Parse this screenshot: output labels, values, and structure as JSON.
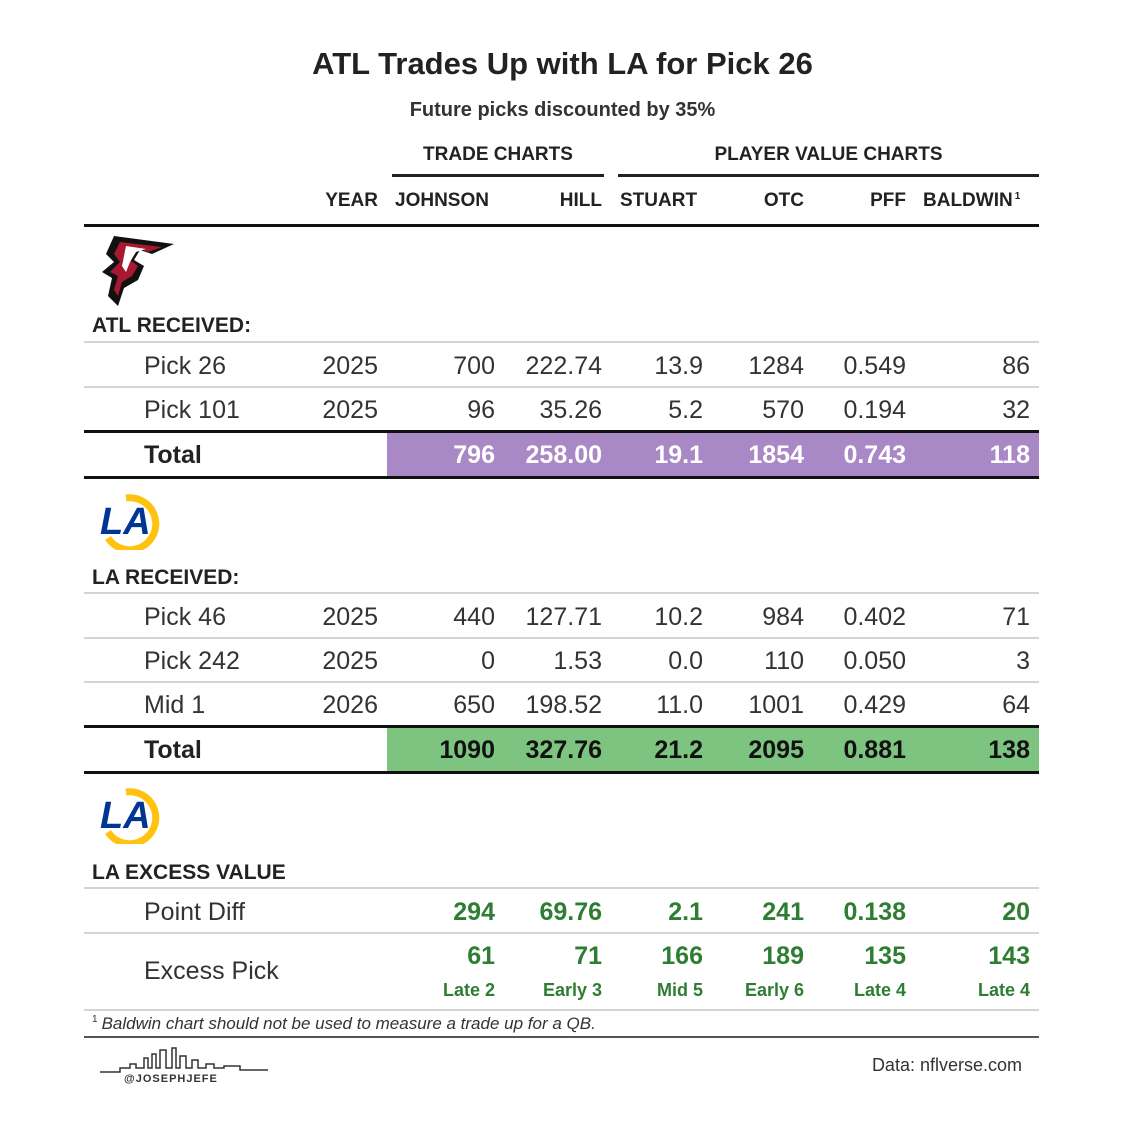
{
  "title": "ATL Trades Up with LA for Pick 26",
  "subtitle": "Future picks discounted by 35%",
  "column_groups": [
    "TRADE CHARTS",
    "PLAYER VALUE CHARTS"
  ],
  "columns": [
    "YEAR",
    "JOHNSON",
    "HILL",
    "STUART",
    "OTC",
    "PFF",
    "BALDWIN"
  ],
  "baldwin_sup": "1",
  "atl": {
    "heading": "ATL RECEIVED:",
    "rows": [
      {
        "label": "Pick 26",
        "year": "2025",
        "values": [
          "700",
          "222.74",
          "13.9",
          "1284",
          "0.549",
          "86"
        ]
      },
      {
        "label": "Pick 101",
        "year": "2025",
        "values": [
          "96",
          "35.26",
          "5.2",
          "570",
          "0.194",
          "32"
        ]
      }
    ],
    "total_label": "Total",
    "total": [
      "796",
      "258.00",
      "19.1",
      "1854",
      "0.743",
      "118"
    ],
    "total_color": "#a989c5"
  },
  "la": {
    "heading": "LA RECEIVED:",
    "rows": [
      {
        "label": "Pick 46",
        "year": "2025",
        "values": [
          "440",
          "127.71",
          "10.2",
          "984",
          "0.402",
          "71"
        ]
      },
      {
        "label": "Pick 242",
        "year": "2025",
        "values": [
          "0",
          "1.53",
          "0.0",
          "110",
          "0.050",
          "3"
        ]
      },
      {
        "label": "Mid 1",
        "year": "2026",
        "values": [
          "650",
          "198.52",
          "11.0",
          "1001",
          "0.429",
          "64"
        ]
      }
    ],
    "total_label": "Total",
    "total": [
      "1090",
      "327.76",
      "21.2",
      "2095",
      "0.881",
      "138"
    ],
    "total_color": "#7cc47f"
  },
  "excess": {
    "heading": "LA EXCESS VALUE",
    "point_diff_label": "Point Diff",
    "point_diff": [
      "294",
      "69.76",
      "2.1",
      "241",
      "0.138",
      "20"
    ],
    "excess_pick_label": "Excess Pick",
    "excess_pick": [
      "61",
      "71",
      "166",
      "189",
      "135",
      "143"
    ],
    "excess_desc": [
      "Late 2",
      "Early 3",
      "Mid 5",
      "Early 6",
      "Late 4",
      "Late 4"
    ]
  },
  "footnote_sup": "1",
  "footnote": "Baldwin chart should not be used to measure a trade up for a QB.",
  "source": "Data: nflverse.com",
  "brand": "@JOSEPHJEFE",
  "value_color": "#2e7d32"
}
